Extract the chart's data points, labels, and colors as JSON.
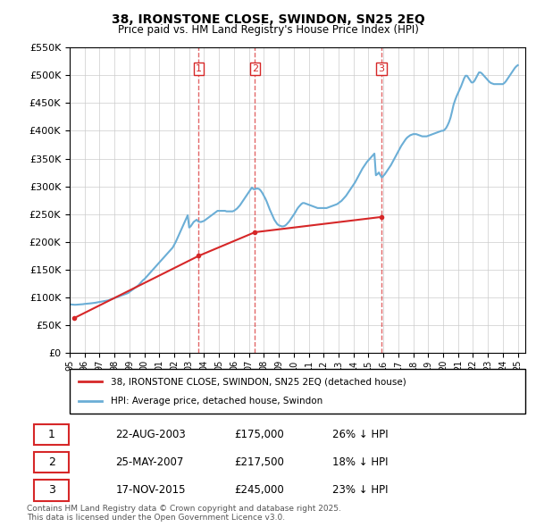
{
  "title": "38, IRONSTONE CLOSE, SWINDON, SN25 2EQ",
  "subtitle": "Price paid vs. HM Land Registry's House Price Index (HPI)",
  "ylabel_ticks": [
    "£0",
    "£50K",
    "£100K",
    "£150K",
    "£200K",
    "£250K",
    "£300K",
    "£350K",
    "£400K",
    "£450K",
    "£500K",
    "£550K"
  ],
  "ylim": [
    0,
    550000
  ],
  "yticks": [
    0,
    50000,
    100000,
    150000,
    200000,
    250000,
    300000,
    350000,
    400000,
    450000,
    500000,
    550000
  ],
  "transactions": [
    {
      "label": "1",
      "date": "22-AUG-2003",
      "price": 175000,
      "pct": "26% ↓ HPI",
      "year": 2003.64
    },
    {
      "label": "2",
      "date": "25-MAY-2007",
      "price": 217500,
      "pct": "18% ↓ HPI",
      "year": 2007.4
    },
    {
      "label": "3",
      "date": "17-NOV-2015",
      "price": 245000,
      "pct": "23% ↓ HPI",
      "year": 2015.88
    }
  ],
  "hpi_line_color": "#6baed6",
  "price_line_color": "#d62728",
  "vline_color": "#d62728",
  "grid_color": "#cccccc",
  "background_color": "#ffffff",
  "legend_label_price": "38, IRONSTONE CLOSE, SWINDON, SN25 2EQ (detached house)",
  "legend_label_hpi": "HPI: Average price, detached house, Swindon",
  "footer": "Contains HM Land Registry data © Crown copyright and database right 2025.\nThis data is licensed under the Open Government Licence v3.0.",
  "hpi_data": {
    "years": [
      1995.0,
      1995.1,
      1995.2,
      1995.3,
      1995.4,
      1995.5,
      1995.6,
      1995.7,
      1995.8,
      1995.9,
      1996.0,
      1996.1,
      1996.2,
      1996.3,
      1996.4,
      1996.5,
      1996.6,
      1996.7,
      1996.8,
      1996.9,
      1997.0,
      1997.1,
      1997.2,
      1997.3,
      1997.4,
      1997.5,
      1997.6,
      1997.7,
      1997.8,
      1997.9,
      1998.0,
      1998.1,
      1998.2,
      1998.3,
      1998.4,
      1998.5,
      1998.6,
      1998.7,
      1998.8,
      1998.9,
      1999.0,
      1999.1,
      1999.2,
      1999.3,
      1999.4,
      1999.5,
      1999.6,
      1999.7,
      1999.8,
      1999.9,
      2000.0,
      2000.1,
      2000.2,
      2000.3,
      2000.4,
      2000.5,
      2000.6,
      2000.7,
      2000.8,
      2000.9,
      2001.0,
      2001.1,
      2001.2,
      2001.3,
      2001.4,
      2001.5,
      2001.6,
      2001.7,
      2001.8,
      2001.9,
      2002.0,
      2002.1,
      2002.2,
      2002.3,
      2002.4,
      2002.5,
      2002.6,
      2002.7,
      2002.8,
      2002.9,
      2003.0,
      2003.1,
      2003.2,
      2003.3,
      2003.4,
      2003.5,
      2003.6,
      2003.7,
      2003.8,
      2003.9,
      2004.0,
      2004.1,
      2004.2,
      2004.3,
      2004.4,
      2004.5,
      2004.6,
      2004.7,
      2004.8,
      2004.9,
      2005.0,
      2005.1,
      2005.2,
      2005.3,
      2005.4,
      2005.5,
      2005.6,
      2005.7,
      2005.8,
      2005.9,
      2006.0,
      2006.1,
      2006.2,
      2006.3,
      2006.4,
      2006.5,
      2006.6,
      2006.7,
      2006.8,
      2006.9,
      2007.0,
      2007.1,
      2007.2,
      2007.3,
      2007.4,
      2007.5,
      2007.6,
      2007.7,
      2007.8,
      2007.9,
      2008.0,
      2008.1,
      2008.2,
      2008.3,
      2008.4,
      2008.5,
      2008.6,
      2008.7,
      2008.8,
      2008.9,
      2009.0,
      2009.1,
      2009.2,
      2009.3,
      2009.4,
      2009.5,
      2009.6,
      2009.7,
      2009.8,
      2009.9,
      2010.0,
      2010.1,
      2010.2,
      2010.3,
      2010.4,
      2010.5,
      2010.6,
      2010.7,
      2010.8,
      2010.9,
      2011.0,
      2011.1,
      2011.2,
      2011.3,
      2011.4,
      2011.5,
      2011.6,
      2011.7,
      2011.8,
      2011.9,
      2012.0,
      2012.1,
      2012.2,
      2012.3,
      2012.4,
      2012.5,
      2012.6,
      2012.7,
      2012.8,
      2012.9,
      2013.0,
      2013.1,
      2013.2,
      2013.3,
      2013.4,
      2013.5,
      2013.6,
      2013.7,
      2013.8,
      2013.9,
      2014.0,
      2014.1,
      2014.2,
      2014.3,
      2014.4,
      2014.5,
      2014.6,
      2014.7,
      2014.8,
      2014.9,
      2015.0,
      2015.1,
      2015.2,
      2015.3,
      2015.4,
      2015.5,
      2015.6,
      2015.7,
      2015.8,
      2015.9,
      2016.0,
      2016.1,
      2016.2,
      2016.3,
      2016.4,
      2016.5,
      2016.6,
      2016.7,
      2016.8,
      2016.9,
      2017.0,
      2017.1,
      2017.2,
      2017.3,
      2017.4,
      2017.5,
      2017.6,
      2017.7,
      2017.8,
      2017.9,
      2018.0,
      2018.1,
      2018.2,
      2018.3,
      2018.4,
      2018.5,
      2018.6,
      2018.7,
      2018.8,
      2018.9,
      2019.0,
      2019.1,
      2019.2,
      2019.3,
      2019.4,
      2019.5,
      2019.6,
      2019.7,
      2019.8,
      2019.9,
      2020.0,
      2020.1,
      2020.2,
      2020.3,
      2020.4,
      2020.5,
      2020.6,
      2020.7,
      2020.8,
      2020.9,
      2021.0,
      2021.1,
      2021.2,
      2021.3,
      2021.4,
      2021.5,
      2021.6,
      2021.7,
      2021.8,
      2021.9,
      2022.0,
      2022.1,
      2022.2,
      2022.3,
      2022.4,
      2022.5,
      2022.6,
      2022.7,
      2022.8,
      2022.9,
      2023.0,
      2023.1,
      2023.2,
      2023.3,
      2023.4,
      2023.5,
      2023.6,
      2023.7,
      2023.8,
      2023.9,
      2024.0,
      2024.1,
      2024.2,
      2024.3,
      2024.4,
      2024.5,
      2024.6,
      2024.7,
      2024.8,
      2024.9,
      2025.0
    ],
    "values": [
      88000,
      87500,
      87200,
      87000,
      87000,
      87200,
      87400,
      87600,
      87800,
      88000,
      88500,
      88800,
      89000,
      89200,
      89500,
      89800,
      90000,
      90500,
      91000,
      91500,
      92000,
      92500,
      93000,
      93500,
      94000,
      94500,
      95000,
      96000,
      97000,
      98000,
      99000,
      100000,
      101000,
      102000,
      103000,
      104000,
      105000,
      106000,
      107000,
      108000,
      110000,
      112000,
      114000,
      116000,
      118000,
      120000,
      122000,
      125000,
      128000,
      131000,
      133000,
      136000,
      139000,
      142000,
      145000,
      148000,
      151000,
      154000,
      157000,
      160000,
      163000,
      166000,
      169000,
      172000,
      175000,
      178000,
      181000,
      184000,
      187000,
      190000,
      195000,
      200000,
      206000,
      212000,
      218000,
      224000,
      230000,
      236000,
      242000,
      248000,
      226000,
      228000,
      232000,
      236000,
      238000,
      240000,
      237000,
      236000,
      236000,
      237000,
      238000,
      240000,
      242000,
      244000,
      246000,
      248000,
      250000,
      252000,
      254000,
      256000,
      256000,
      256000,
      256000,
      256000,
      256000,
      255000,
      255000,
      255000,
      255000,
      255000,
      256000,
      258000,
      260000,
      263000,
      266000,
      270000,
      274000,
      278000,
      282000,
      286000,
      290000,
      294000,
      298000,
      295000,
      295000,
      296000,
      296000,
      295000,
      292000,
      288000,
      283000,
      278000,
      272000,
      265000,
      258000,
      252000,
      246000,
      240000,
      236000,
      232000,
      230000,
      229000,
      228000,
      228000,
      229000,
      231000,
      234000,
      237000,
      241000,
      245000,
      249000,
      253000,
      258000,
      262000,
      265000,
      268000,
      270000,
      270000,
      269000,
      268000,
      267000,
      266000,
      265000,
      264000,
      263000,
      262000,
      261000,
      261000,
      261000,
      261000,
      261000,
      261000,
      261000,
      262000,
      263000,
      264000,
      265000,
      266000,
      267000,
      268000,
      270000,
      272000,
      274000,
      277000,
      280000,
      283000,
      287000,
      291000,
      295000,
      299000,
      303000,
      307000,
      312000,
      317000,
      322000,
      327000,
      332000,
      336000,
      340000,
      344000,
      347000,
      350000,
      353000,
      356000,
      359000,
      320000,
      322000,
      325000,
      320000,
      316000,
      319000,
      322000,
      326000,
      330000,
      334000,
      338000,
      343000,
      348000,
      353000,
      358000,
      363000,
      368000,
      373000,
      377000,
      381000,
      385000,
      388000,
      390000,
      392000,
      393000,
      394000,
      394000,
      394000,
      393000,
      392000,
      391000,
      390000,
      390000,
      390000,
      390000,
      391000,
      392000,
      393000,
      394000,
      395000,
      396000,
      397000,
      398000,
      399000,
      400000,
      400000,
      402000,
      405000,
      410000,
      416000,
      424000,
      435000,
      447000,
      455000,
      462000,
      468000,
      474000,
      480000,
      487000,
      494000,
      499000,
      499000,
      495000,
      491000,
      487000,
      487000,
      490000,
      495000,
      500000,
      505000,
      505000,
      503000,
      500000,
      497000,
      494000,
      491000,
      488000,
      486000,
      485000,
      484000,
      484000,
      484000,
      484000,
      484000,
      484000,
      484000,
      486000,
      489000,
      493000,
      497000,
      501000,
      505000,
      509000,
      513000,
      516000,
      518000
    ]
  },
  "price_data": {
    "years": [
      1995.3,
      2003.64,
      2007.4,
      2015.88
    ],
    "values": [
      63000,
      175000,
      217500,
      245000
    ]
  },
  "xmin": 1995,
  "xmax": 2025.5
}
